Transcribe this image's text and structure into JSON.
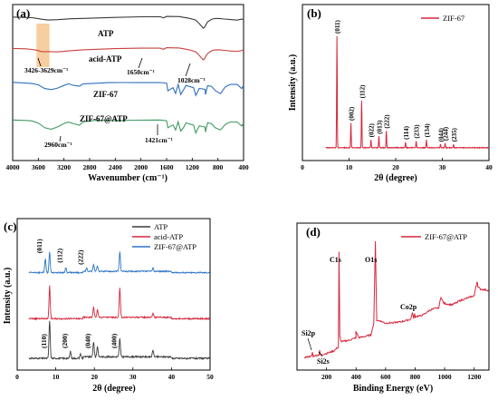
{
  "chart_data": [
    {
      "panel": "(a)",
      "type": "line",
      "xlabel": "Wavenumber (cm⁻¹)",
      "ylabel": "",
      "xlim": [
        4000,
        400
      ],
      "x_reversed": true,
      "xticks": [
        4000,
        3600,
        3200,
        2800,
        2400,
        2000,
        1600,
        1200,
        800,
        400
      ],
      "series": [
        {
          "name": "ATP",
          "color": "#3a3a3a",
          "offset": 92,
          "x": [
            4000,
            3800,
            3700,
            3620,
            3550,
            3450,
            3300,
            3100,
            2900,
            2400,
            2000,
            1700,
            1650,
            1600,
            1400,
            1250,
            1150,
            1100,
            1060,
            1030,
            1010,
            990,
            960,
            900,
            850,
            780,
            700,
            600,
            500,
            450,
            400
          ],
          "y": [
            0,
            -0.3,
            -0.8,
            -1.6,
            -2.4,
            -2.9,
            -2.8,
            -1.9,
            -1.2,
            -0.5,
            0.3,
            0.5,
            -0.5,
            0.6,
            0.3,
            -1.3,
            -3,
            -6,
            -9,
            -11,
            -10.5,
            -8,
            -5,
            -2.5,
            -1.5,
            -1.5,
            -2,
            -2.5,
            -3,
            -2.4,
            -2
          ]
        },
        {
          "name": "acid-ATP",
          "color": "#c8403e",
          "offset": 72,
          "x": [
            4000,
            3800,
            3700,
            3620,
            3550,
            3450,
            3300,
            3100,
            2900,
            2400,
            2000,
            1700,
            1650,
            1600,
            1400,
            1250,
            1150,
            1100,
            1060,
            1030,
            1010,
            990,
            960,
            900,
            850,
            780,
            700,
            600,
            500,
            450,
            400
          ],
          "y": [
            0,
            -0.4,
            -1,
            -2,
            -3.2,
            -3.6,
            -3.5,
            -2.6,
            -1.6,
            -0.6,
            0.2,
            0.4,
            -0.9,
            0.4,
            0.1,
            -1.5,
            -3.5,
            -6.5,
            -9.5,
            -11.5,
            -10.8,
            -8.3,
            -5.3,
            -2.6,
            -1.6,
            -1.6,
            -2,
            -2.6,
            -3,
            -2.5,
            -2
          ]
        },
        {
          "name": "ZIF-67",
          "color": "#2f6fbf",
          "offset": 50,
          "x": [
            4000,
            3800,
            3700,
            3600,
            3500,
            3400,
            3300,
            3200,
            3130,
            3050,
            2960,
            2900,
            2700,
            2500,
            2300,
            2100,
            1900,
            1700,
            1600,
            1580,
            1500,
            1460,
            1420,
            1380,
            1330,
            1300,
            1180,
            1145,
            1090,
            1000,
            995,
            960,
            900,
            840,
            760,
            690,
            640,
            600,
            500,
            430,
            400
          ],
          "y": [
            0,
            -0.5,
            -1,
            -2.5,
            -6,
            -7,
            -5.5,
            -3,
            -1.5,
            -3,
            -3.5,
            -1.5,
            -0.5,
            -0.3,
            -0.2,
            0,
            0,
            0,
            -0.5,
            -8,
            -5,
            -11,
            -2,
            -12,
            -7,
            -3,
            -5,
            -13,
            -6,
            -7,
            -12,
            -3,
            -4,
            -8,
            -11,
            -5,
            -3,
            -2,
            -2,
            -6,
            -3
          ]
        },
        {
          "name": "ZIF-67@ATP",
          "color": "#3e9a62",
          "offset": 26,
          "x": [
            4000,
            3800,
            3700,
            3600,
            3500,
            3400,
            3300,
            3200,
            3130,
            3050,
            2960,
            2900,
            2700,
            2500,
            2300,
            2100,
            1900,
            1700,
            1600,
            1580,
            1500,
            1460,
            1421,
            1380,
            1330,
            1300,
            1180,
            1145,
            1090,
            1000,
            995,
            960,
            900,
            840,
            760,
            690,
            640,
            600,
            500,
            430,
            400
          ],
          "y": [
            0,
            -0.5,
            -1.2,
            -3,
            -8,
            -9.5,
            -7,
            -3.5,
            -2,
            -3.5,
            -5,
            -2,
            -0.6,
            -0.3,
            -0.2,
            0,
            0,
            0,
            -0.5,
            -8,
            -5,
            -10,
            -2,
            -11,
            -7,
            -3,
            -5,
            -13,
            -6,
            -7,
            -12,
            -3,
            -4,
            -8,
            -10,
            -5,
            -3,
            -2,
            -2,
            -6,
            -3
          ]
        }
      ],
      "annotations": [
        "3426-3629cm⁻¹",
        "1650cm⁻¹",
        "1028cm⁻¹",
        "2960cm⁻¹",
        "1421cm⁻¹"
      ],
      "highlight_band": [
        3629,
        3426
      ],
      "legend": "inline"
    },
    {
      "panel": "(b)",
      "type": "line",
      "xlabel": "2θ (degree)",
      "ylabel": "Intensity (a.u.)",
      "xlim": [
        0,
        40
      ],
      "xticks": [
        0,
        10,
        20,
        30,
        40
      ],
      "legend": "top-right",
      "series": [
        {
          "name": "ZIF-67",
          "color": "#d6263b",
          "peaks": [
            {
              "x": 7.4,
              "y": 100,
              "label": "(011)"
            },
            {
              "x": 10.4,
              "y": 22,
              "label": "(002)"
            },
            {
              "x": 12.7,
              "y": 42,
              "label": "(112)"
            },
            {
              "x": 14.7,
              "y": 7,
              "label": "(022)"
            },
            {
              "x": 16.4,
              "y": 10,
              "label": "(013)"
            },
            {
              "x": 18.0,
              "y": 15,
              "label": "(222)"
            },
            {
              "x": 22.1,
              "y": 5,
              "label": "(114)"
            },
            {
              "x": 24.4,
              "y": 6,
              "label": "(233)"
            },
            {
              "x": 26.6,
              "y": 7,
              "label": "(134)"
            },
            {
              "x": 29.6,
              "y": 3,
              "label": "(044)"
            },
            {
              "x": 30.6,
              "y": 4,
              "label": "(244)"
            },
            {
              "x": 32.4,
              "y": 3,
              "label": "(235)"
            }
          ]
        }
      ]
    },
    {
      "panel": "(c)",
      "type": "line",
      "xlabel": "2θ (degree)",
      "ylabel": "Intensity (a.u.)",
      "xlim": [
        0,
        50
      ],
      "xticks": [
        0,
        10,
        20,
        30,
        40,
        50
      ],
      "legend": "top-right",
      "series": [
        {
          "name": "ATP",
          "color": "#3a3a3a",
          "peaks": [
            {
              "x": 8.4,
              "y": 100,
              "label": "(110)"
            },
            {
              "x": 13.8,
              "y": 18,
              "label": "(200)"
            },
            {
              "x": 16.4,
              "y": 12
            },
            {
              "x": 19.8,
              "y": 40,
              "label": "(040)"
            },
            {
              "x": 20.8,
              "y": 28
            },
            {
              "x": 26.6,
              "y": 48,
              "label": "(400)"
            },
            {
              "x": 35.2,
              "y": 18
            }
          ]
        },
        {
          "name": "acid-ATP",
          "color": "#d6263b",
          "peaks": [
            {
              "x": 8.4,
              "y": 95
            },
            {
              "x": 19.8,
              "y": 30
            },
            {
              "x": 20.8,
              "y": 22
            },
            {
              "x": 26.6,
              "y": 85
            },
            {
              "x": 35.2,
              "y": 12
            }
          ]
        },
        {
          "name": "ZIF-67@ATP",
          "color": "#2a73c6",
          "peaks": [
            {
              "x": 7.3,
              "y": 45,
              "label": "(011)"
            },
            {
              "x": 8.4,
              "y": 65
            },
            {
              "x": 12.6,
              "y": 15,
              "label": "(112)"
            },
            {
              "x": 18.0,
              "y": 9,
              "label": "(222)"
            },
            {
              "x": 19.8,
              "y": 22
            },
            {
              "x": 20.8,
              "y": 18
            },
            {
              "x": 26.6,
              "y": 62
            },
            {
              "x": 35.2,
              "y": 10
            }
          ]
        }
      ]
    },
    {
      "panel": "(d)",
      "type": "line",
      "xlabel": "Binding Energy (eV)",
      "ylabel": "",
      "xlim": [
        0,
        1300
      ],
      "xticks": [
        200,
        400,
        600,
        800,
        1000,
        1200
      ],
      "legend": "top-right",
      "series": [
        {
          "name": "ZIF-67@ATP",
          "color": "#d6263b",
          "x": [
            50,
            100,
            104,
            110,
            150,
            153,
            160,
            200,
            250,
            280,
            284.8,
            290,
            300,
            350,
            400,
            398,
            420,
            500,
            520,
            531,
            540,
            560,
            600,
            700,
            770,
            781,
            790,
            797,
            800,
            850,
            900,
            960,
            975,
            990,
            1000,
            1050,
            1100,
            1150,
            1200,
            1220,
            1225,
            1240,
            1300
          ],
          "y": [
            2,
            3,
            6,
            3,
            4,
            7,
            4,
            5,
            7,
            10,
            82,
            18,
            14,
            15,
            17,
            22,
            17,
            19,
            28,
            90,
            30,
            30,
            28,
            29,
            31,
            36,
            32,
            35,
            33,
            34,
            38,
            40,
            48,
            44,
            43,
            42,
            45,
            47,
            49,
            60,
            56,
            54,
            53
          ]
        }
      ],
      "peak_labels": [
        {
          "label": "Si2p",
          "x": 104
        },
        {
          "label": "Si2s",
          "x": 153
        },
        {
          "label": "C1s",
          "x": 285
        },
        {
          "label": "O1s",
          "x": 531
        },
        {
          "label": "Co2p",
          "x": 781
        }
      ]
    }
  ]
}
